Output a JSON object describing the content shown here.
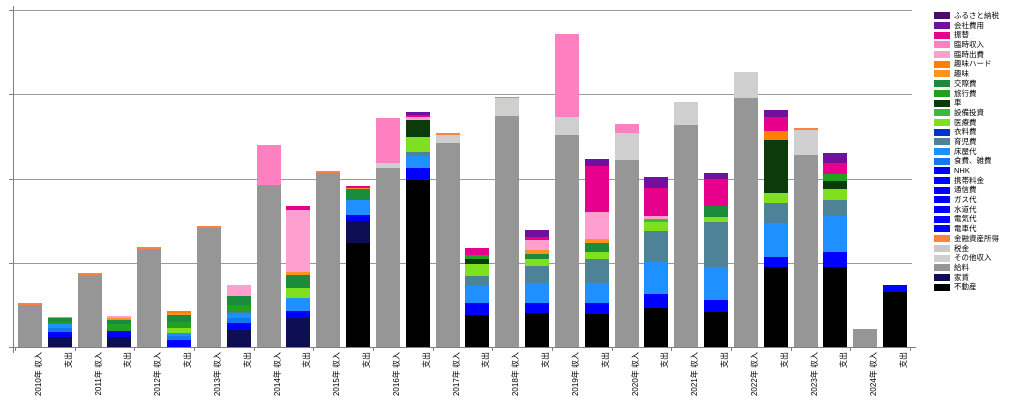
{
  "chart_data": {
    "type": "bar",
    "stacked": true,
    "title": "",
    "subtitle": "",
    "y_axis": {
      "min": 0,
      "max": 400,
      "gridline_interval": 100,
      "tick_labels_visible": false,
      "grid_on": true
    },
    "x_axis": {
      "label_style": "rotated-90",
      "labels": [
        "2010年 収入",
        "支出",
        "2011年 収入",
        "支出",
        "2012年 収入",
        "支出",
        "2013年 収入",
        "支出",
        "2014年 収入",
        "支出",
        "2015年 収入",
        "支出",
        "2016年 収入",
        "支出",
        "2017年 収入",
        "支出",
        "2018年 収入",
        "支出",
        "2019年 収入",
        "支出",
        "2020年 収入",
        "支出",
        "2021年 収入",
        "支出",
        "2022年 収入",
        "支出",
        "2023年 収入",
        "支出",
        "2024年 収入",
        "支出"
      ]
    },
    "legend": {
      "position": "right",
      "items": [
        {
          "label": "ふるさと納税",
          "color": "#4A0D66"
        },
        {
          "label": "会社費用",
          "color": "#70119E"
        },
        {
          "label": "振替",
          "color": "#E6008C"
        },
        {
          "label": "臨時収入",
          "color": "#FF80C0"
        },
        {
          "label": "臨時出費",
          "color": "#FF9FCF"
        },
        {
          "label": "趣味ハード",
          "color": "#FF8000"
        },
        {
          "label": "趣味",
          "color": "#FF921F"
        },
        {
          "label": "交際費",
          "color": "#1A8C3A"
        },
        {
          "label": "旅行費",
          "color": "#21A121"
        },
        {
          "label": "車",
          "color": "#0B3B0B"
        },
        {
          "label": "設備投資",
          "color": "#3CB93C"
        },
        {
          "label": "医療費",
          "color": "#7FE020"
        },
        {
          "label": "衣料費",
          "color": "#0033CC"
        },
        {
          "label": "育児費",
          "color": "#4E8296"
        },
        {
          "label": "床屋代",
          "color": "#1E90FF"
        },
        {
          "label": "食費、雑費",
          "color": "#1478F0"
        },
        {
          "label": "NHK",
          "color": "#0000FF"
        },
        {
          "label": "携帯料金",
          "color": "#0000FF"
        },
        {
          "label": "通信費",
          "color": "#0000FF"
        },
        {
          "label": "ガス代",
          "color": "#0000FF"
        },
        {
          "label": "水道代",
          "color": "#0000FF"
        },
        {
          "label": "電気代",
          "color": "#0000FF"
        },
        {
          "label": "電車代",
          "color": "#0000FF"
        },
        {
          "label": "金融資産所得",
          "color": "#FF8040"
        },
        {
          "label": "税金",
          "color": "#C9C9C9"
        },
        {
          "label": "その他収入",
          "color": "#CFCFCF"
        },
        {
          "label": "給料",
          "color": "#969696"
        },
        {
          "label": "家賃",
          "color": "#0E0E52"
        },
        {
          "label": "不動産",
          "color": "#000000"
        }
      ]
    },
    "bars": [
      {
        "label": "2010年 収入",
        "segments": [
          {
            "c": "給料",
            "v": 50
          },
          {
            "c": "金融資産所得",
            "v": 2
          }
        ]
      },
      {
        "label": "2010年 支出",
        "segments": [
          {
            "c": "家賃",
            "v": 12
          },
          {
            "c": "電車代",
            "v": 6
          },
          {
            "c": "食費、雑費",
            "v": 5
          },
          {
            "c": "床屋代",
            "v": 4
          },
          {
            "c": "旅行費",
            "v": 3
          },
          {
            "c": "交際費",
            "v": 4
          },
          {
            "c": "趣味",
            "v": 2
          }
        ]
      },
      {
        "label": "2011年 収入",
        "segments": [
          {
            "c": "給料",
            "v": 86
          },
          {
            "c": "金融資産所得",
            "v": 2
          }
        ]
      },
      {
        "label": "2011年 支出",
        "segments": [
          {
            "c": "家賃",
            "v": 12
          },
          {
            "c": "電車代",
            "v": 7
          },
          {
            "c": "旅行費",
            "v": 8
          },
          {
            "c": "交際費",
            "v": 5
          },
          {
            "c": "趣味",
            "v": 3
          },
          {
            "c": "臨時出費",
            "v": 2
          }
        ]
      },
      {
        "label": "2012年 収入",
        "segments": [
          {
            "c": "給料",
            "v": 116
          },
          {
            "c": "金融資産所得",
            "v": 3
          }
        ]
      },
      {
        "label": "2012年 支出",
        "segments": [
          {
            "c": "電車代",
            "v": 8
          },
          {
            "c": "食費、雑費",
            "v": 5
          },
          {
            "c": "床屋代",
            "v": 4
          },
          {
            "c": "医療費",
            "v": 5
          },
          {
            "c": "旅行費",
            "v": 8
          },
          {
            "c": "交際費",
            "v": 8
          },
          {
            "c": "趣味",
            "v": 2
          },
          {
            "c": "趣味ハード",
            "v": 3
          }
        ]
      },
      {
        "label": "2013年 収入",
        "segments": [
          {
            "c": "給料",
            "v": 141
          },
          {
            "c": "金融資産所得",
            "v": 3
          }
        ]
      },
      {
        "label": "2013年 支出",
        "segments": [
          {
            "c": "家賃",
            "v": 20
          },
          {
            "c": "電車代",
            "v": 8
          },
          {
            "c": "食費、雑費",
            "v": 6
          },
          {
            "c": "床屋代",
            "v": 5
          },
          {
            "c": "育児費",
            "v": 3
          },
          {
            "c": "旅行費",
            "v": 8
          },
          {
            "c": "交際費",
            "v": 10
          },
          {
            "c": "臨時出費",
            "v": 14
          }
        ]
      },
      {
        "label": "2014年 収入",
        "segments": [
          {
            "c": "給料",
            "v": 192
          },
          {
            "c": "臨時収入",
            "v": 48
          }
        ]
      },
      {
        "label": "2014年 支出",
        "segments": [
          {
            "c": "家賃",
            "v": 34
          },
          {
            "c": "電車代",
            "v": 9
          },
          {
            "c": "床屋代",
            "v": 15
          },
          {
            "c": "医療費",
            "v": 12
          },
          {
            "c": "交際費",
            "v": 15
          },
          {
            "c": "趣味",
            "v": 4
          },
          {
            "c": "臨時出費",
            "v": 74
          },
          {
            "c": "振替",
            "v": 5
          }
        ]
      },
      {
        "label": "2015年 収入",
        "segments": [
          {
            "c": "給料",
            "v": 206
          },
          {
            "c": "金融資産所得",
            "v": 3
          }
        ]
      },
      {
        "label": "2015年 支出",
        "segments": [
          {
            "c": "不動産",
            "v": 123
          },
          {
            "c": "家賃",
            "v": 26
          },
          {
            "c": "電車代",
            "v": 8
          },
          {
            "c": "床屋代",
            "v": 18
          },
          {
            "c": "交際費",
            "v": 12
          },
          {
            "c": "趣味",
            "v": 2
          },
          {
            "c": "振替",
            "v": 2
          }
        ]
      },
      {
        "label": "2016年 収入",
        "segments": [
          {
            "c": "給料",
            "v": 213
          },
          {
            "c": "その他収入",
            "v": 6
          },
          {
            "c": "臨時収入",
            "v": 53
          }
        ]
      },
      {
        "label": "2016年 支出",
        "segments": [
          {
            "c": "不動産",
            "v": 198
          },
          {
            "c": "電車代",
            "v": 14
          },
          {
            "c": "床屋代",
            "v": 15
          },
          {
            "c": "育児費",
            "v": 4
          },
          {
            "c": "医療費",
            "v": 18
          },
          {
            "c": "車",
            "v": 20
          },
          {
            "c": "臨時出費",
            "v": 4
          },
          {
            "c": "振替",
            "v": 3
          },
          {
            "c": "会社費用",
            "v": 3
          }
        ]
      },
      {
        "label": "2017年 収入",
        "segments": [
          {
            "c": "給料",
            "v": 242
          },
          {
            "c": "その他収入",
            "v": 10
          },
          {
            "c": "金融資産所得",
            "v": 2
          }
        ]
      },
      {
        "label": "2017年 支出",
        "segments": [
          {
            "c": "不動産",
            "v": 38
          },
          {
            "c": "電車代",
            "v": 14
          },
          {
            "c": "床屋代",
            "v": 20
          },
          {
            "c": "育児費",
            "v": 12
          },
          {
            "c": "医療費",
            "v": 15
          },
          {
            "c": "車",
            "v": 6
          },
          {
            "c": "旅行費",
            "v": 4
          },
          {
            "c": "振替",
            "v": 9
          }
        ]
      },
      {
        "label": "2018年 収入",
        "segments": [
          {
            "c": "給料",
            "v": 274
          },
          {
            "c": "その他収入",
            "v": 21
          },
          {
            "c": "金融資産所得",
            "v": 2
          }
        ]
      },
      {
        "label": "2018年 支出",
        "segments": [
          {
            "c": "不動産",
            "v": 40
          },
          {
            "c": "電車代",
            "v": 12
          },
          {
            "c": "床屋代",
            "v": 24
          },
          {
            "c": "育児費",
            "v": 20
          },
          {
            "c": "医療費",
            "v": 8
          },
          {
            "c": "交際費",
            "v": 7
          },
          {
            "c": "趣味",
            "v": 4
          },
          {
            "c": "臨時出費",
            "v": 12
          },
          {
            "c": "振替",
            "v": 4
          },
          {
            "c": "会社費用",
            "v": 8
          }
        ]
      },
      {
        "label": "2019年 収入",
        "segments": [
          {
            "c": "給料",
            "v": 252
          },
          {
            "c": "その他収入",
            "v": 21
          },
          {
            "c": "臨時収入",
            "v": 99
          }
        ]
      },
      {
        "label": "2019年 支出",
        "segments": [
          {
            "c": "不動産",
            "v": 39
          },
          {
            "c": "電車代",
            "v": 13
          },
          {
            "c": "床屋代",
            "v": 24
          },
          {
            "c": "育児費",
            "v": 29
          },
          {
            "c": "医療費",
            "v": 8
          },
          {
            "c": "交際費",
            "v": 11
          },
          {
            "c": "趣味",
            "v": 4
          },
          {
            "c": "臨時出費",
            "v": 32
          },
          {
            "c": "振替",
            "v": 55
          },
          {
            "c": "会社費用",
            "v": 8
          }
        ]
      },
      {
        "label": "2020年 収入",
        "segments": [
          {
            "c": "給料",
            "v": 222
          },
          {
            "c": "その他収入",
            "v": 32
          },
          {
            "c": "臨時収入",
            "v": 11
          }
        ]
      },
      {
        "label": "2020年 支出",
        "segments": [
          {
            "c": "不動産",
            "v": 46
          },
          {
            "c": "電車代",
            "v": 12
          },
          {
            "c": "NHK",
            "v": 5
          },
          {
            "c": "床屋代",
            "v": 39
          },
          {
            "c": "育児費",
            "v": 36
          },
          {
            "c": "医療費",
            "v": 10
          },
          {
            "c": "設備投資",
            "v": 4
          },
          {
            "c": "臨時出費",
            "v": 4
          },
          {
            "c": "振替",
            "v": 33
          },
          {
            "c": "会社費用",
            "v": 13
          }
        ]
      },
      {
        "label": "2021年 収入",
        "segments": [
          {
            "c": "給料",
            "v": 264
          },
          {
            "c": "その他収入",
            "v": 27
          }
        ]
      },
      {
        "label": "2021年 支出",
        "segments": [
          {
            "c": "不動産",
            "v": 42
          },
          {
            "c": "電車代",
            "v": 14
          },
          {
            "c": "床屋代",
            "v": 39
          },
          {
            "c": "育児費",
            "v": 53
          },
          {
            "c": "医療費",
            "v": 6
          },
          {
            "c": "交際費",
            "v": 13
          },
          {
            "c": "振替",
            "v": 33
          },
          {
            "c": "会社費用",
            "v": 7
          }
        ]
      },
      {
        "label": "2022年 収入",
        "segments": [
          {
            "c": "給料",
            "v": 295
          },
          {
            "c": "その他収入",
            "v": 31
          }
        ]
      },
      {
        "label": "2022年 支出",
        "segments": [
          {
            "c": "不動産",
            "v": 95
          },
          {
            "c": "電車代",
            "v": 12
          },
          {
            "c": "床屋代",
            "v": 40
          },
          {
            "c": "育児費",
            "v": 24
          },
          {
            "c": "医療費",
            "v": 12
          },
          {
            "c": "車",
            "v": 63
          },
          {
            "c": "趣味ハード",
            "v": 10
          },
          {
            "c": "振替",
            "v": 17
          },
          {
            "c": "会社費用",
            "v": 8
          }
        ]
      },
      {
        "label": "2023年 収入",
        "segments": [
          {
            "c": "給料",
            "v": 228
          },
          {
            "c": "その他収入",
            "v": 29
          },
          {
            "c": "金融資産所得",
            "v": 3
          }
        ]
      },
      {
        "label": "2023年 支出",
        "segments": [
          {
            "c": "不動産",
            "v": 95
          },
          {
            "c": "電車代",
            "v": 14
          },
          {
            "c": "NHK",
            "v": 4
          },
          {
            "c": "床屋代",
            "v": 42
          },
          {
            "c": "育児費",
            "v": 20
          },
          {
            "c": "医療費",
            "v": 12
          },
          {
            "c": "車",
            "v": 10
          },
          {
            "c": "旅行費",
            "v": 8
          },
          {
            "c": "振替",
            "v": 14
          },
          {
            "c": "会社費用",
            "v": 11
          }
        ]
      },
      {
        "label": "2024年 収入",
        "segments": [
          {
            "c": "給料",
            "v": 21
          }
        ]
      },
      {
        "label": "2024年 支出",
        "segments": [
          {
            "c": "不動産",
            "v": 65
          },
          {
            "c": "電車代",
            "v": 9
          }
        ]
      }
    ]
  }
}
